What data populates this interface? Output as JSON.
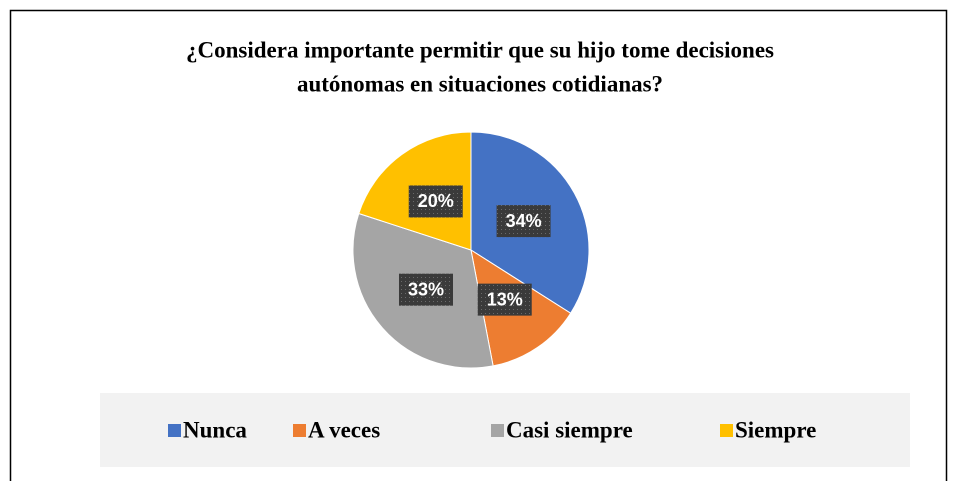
{
  "chart_data": {
    "type": "pie",
    "title": [
      "¿Considera importante permitir que su hijo tome decisiones",
      "autónomas en situaciones cotidianas?"
    ],
    "categories": [
      "Nunca",
      "A veces",
      "Casi siempre",
      "Siempre"
    ],
    "values": [
      34,
      13,
      33,
      20
    ],
    "value_labels": [
      "34%",
      "13%",
      "33%",
      "20%"
    ],
    "colors": [
      "#4472c4",
      "#ed7d31",
      "#a5a5a5",
      "#ffc000"
    ],
    "legend": "bottom"
  }
}
